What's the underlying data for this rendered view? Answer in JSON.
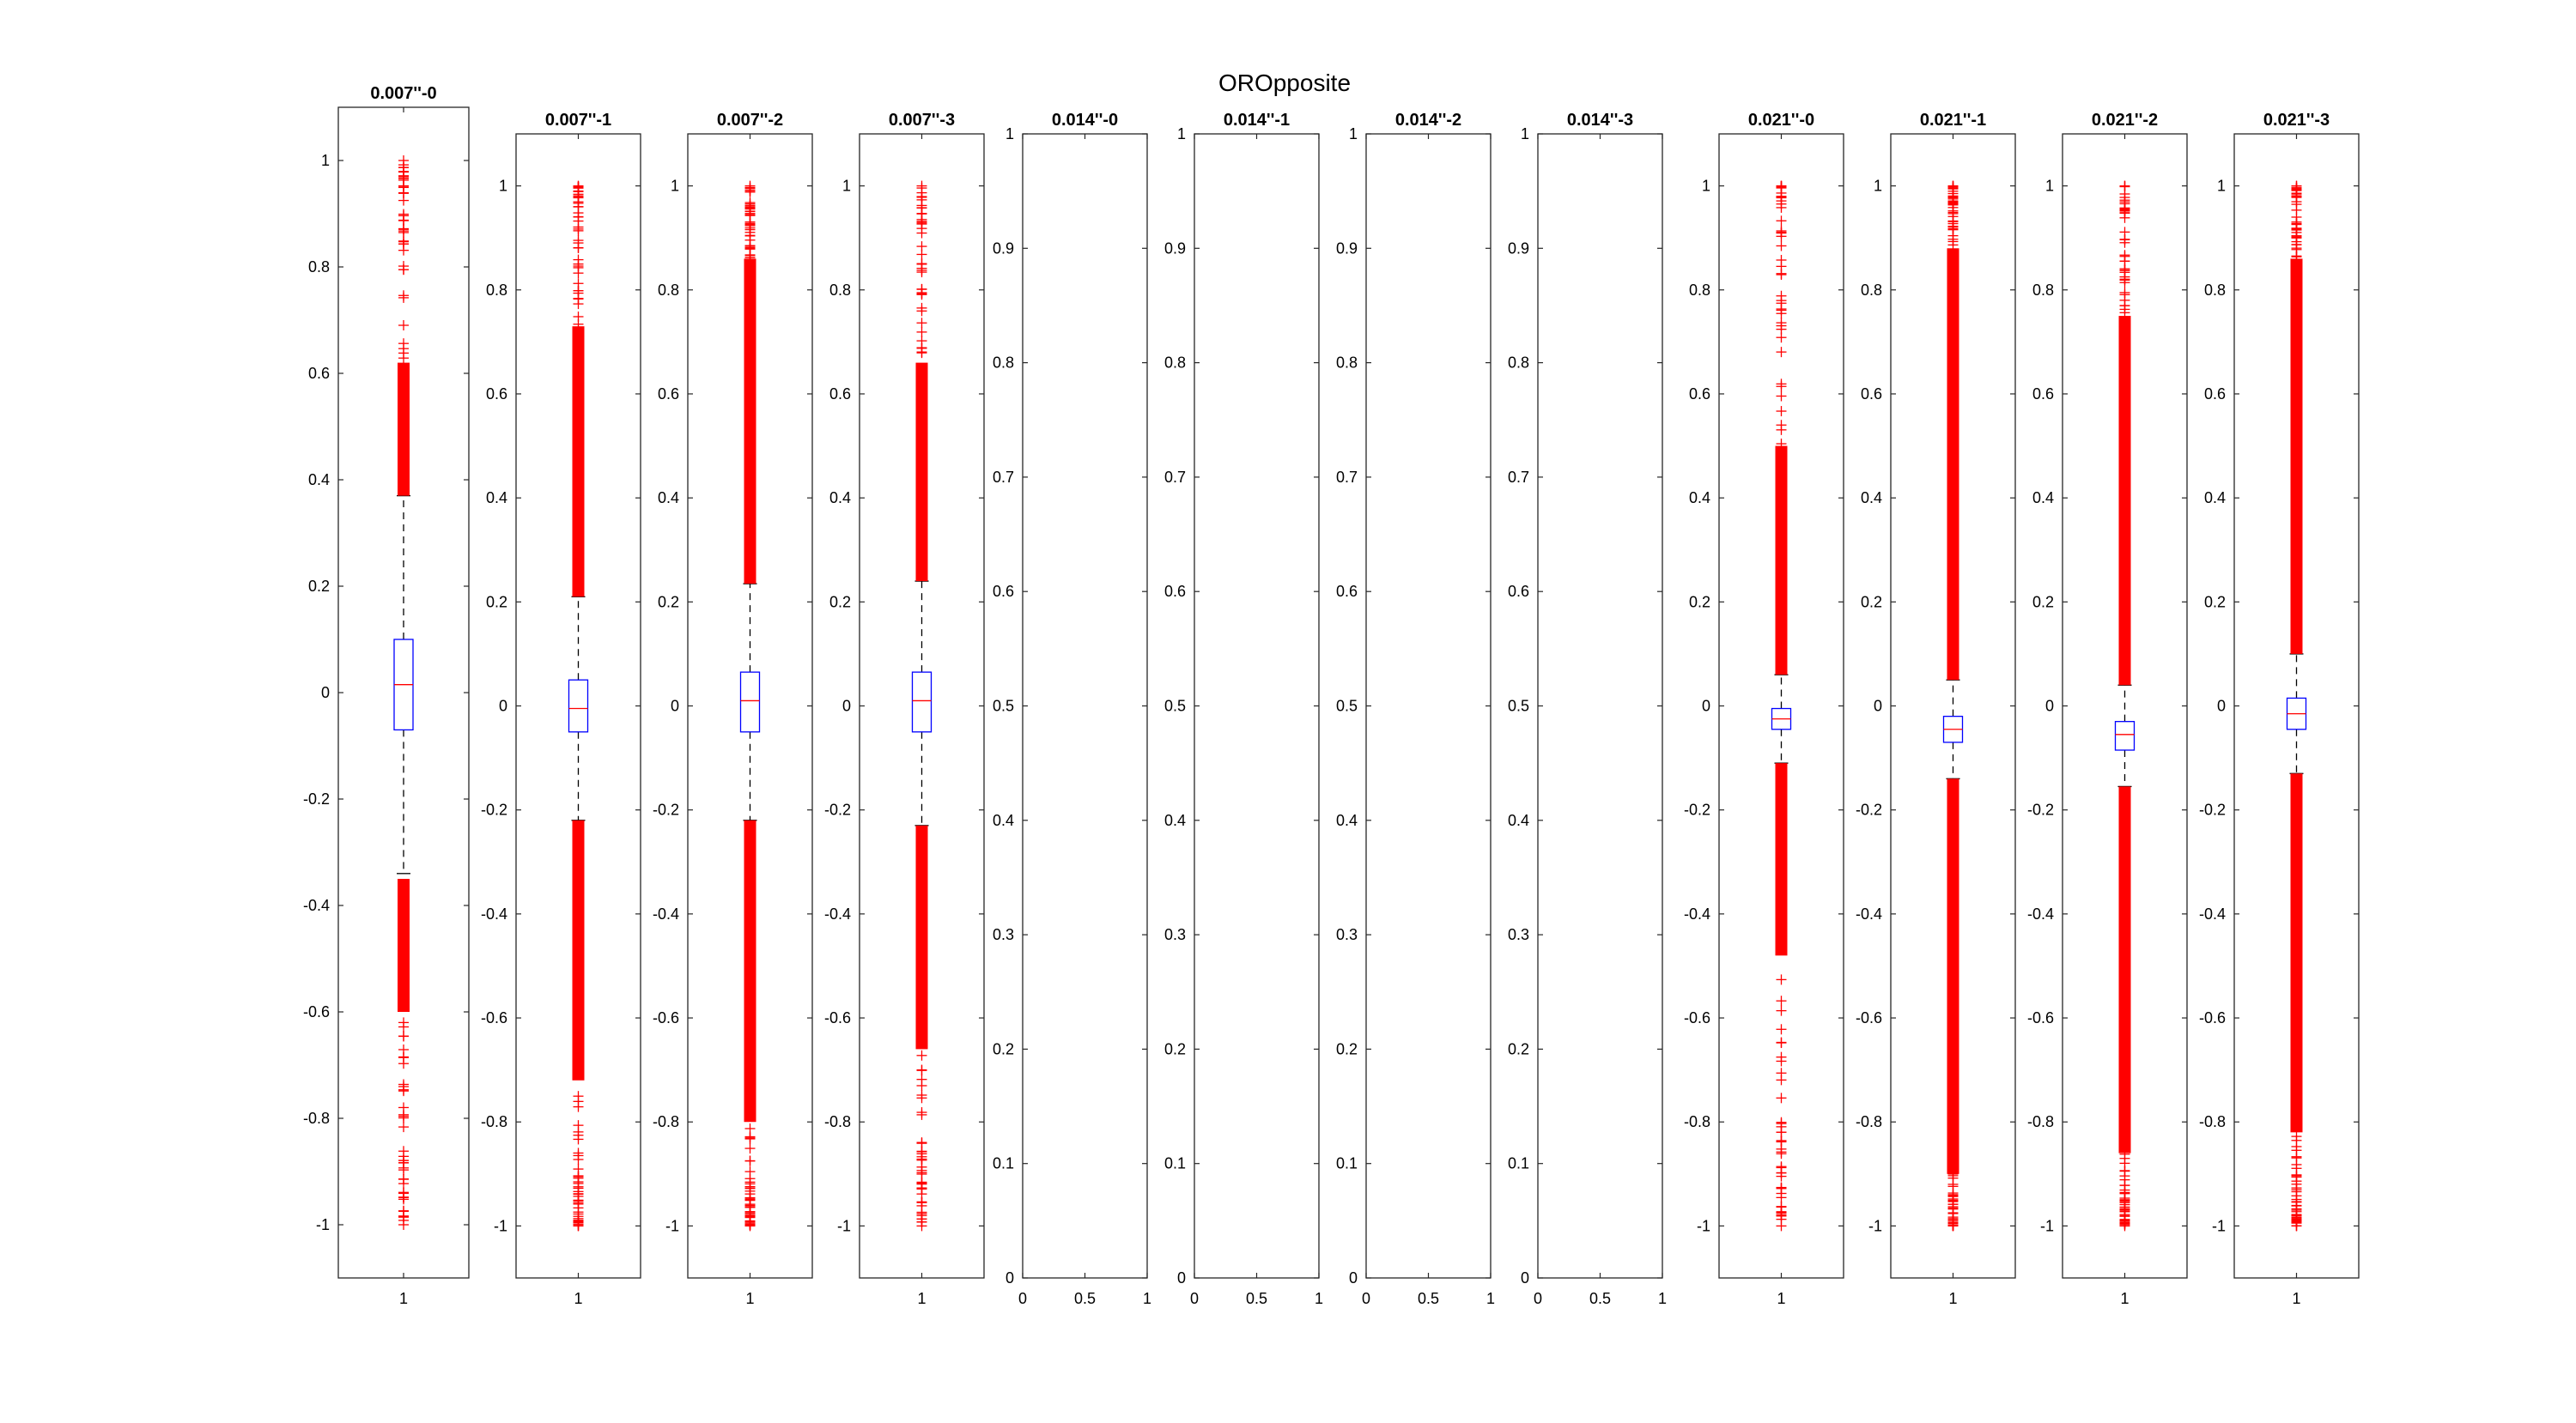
{
  "figure": {
    "title": "OROpposite"
  },
  "colors": {
    "axes": "#262626",
    "box": "#0000ff",
    "median": "#ff0000",
    "whisker": "#000000",
    "outlier": "#ff0000",
    "background": "#ffffff"
  },
  "chart_data": [
    {
      "type": "box",
      "title": "0.007''-0",
      "xticks": [
        "1"
      ],
      "ylim": [
        -1.1,
        1.1
      ],
      "yticks": [
        "-1",
        "-0.8",
        "-0.6",
        "-0.4",
        "-0.2",
        "0",
        "0.2",
        "0.4",
        "0.6",
        "0.8",
        "1"
      ],
      "box": {
        "q1": -0.07,
        "median": 0.015,
        "q3": 0.1,
        "whisker_low": -0.34,
        "whisker_high": 0.37
      },
      "outliers": {
        "dense_low": [
          -0.35,
          -0.6
        ],
        "sparse_low": [
          -0.6,
          -1.0
        ],
        "dense_high": [
          0.37,
          0.62
        ],
        "sparse_high": [
          0.62,
          1.0
        ]
      }
    },
    {
      "type": "box",
      "title": "0.007''-1",
      "xticks": [
        "1"
      ],
      "ylim": [
        -1.1,
        1.1
      ],
      "yticks": [
        "-1",
        "-0.8",
        "-0.6",
        "-0.4",
        "-0.2",
        "0",
        "0.2",
        "0.4",
        "0.6",
        "0.8",
        "1"
      ],
      "box": {
        "q1": -0.05,
        "median": -0.005,
        "q3": 0.05,
        "whisker_low": -0.22,
        "whisker_high": 0.21
      },
      "outliers": {
        "dense_low": [
          -0.22,
          -0.72
        ],
        "sparse_low": [
          -0.72,
          -1.0
        ],
        "dense_high": [
          0.21,
          0.73
        ],
        "sparse_high": [
          0.73,
          1.0
        ]
      }
    },
    {
      "type": "box",
      "title": "0.007''-2",
      "xticks": [
        "1"
      ],
      "ylim": [
        -1.1,
        1.1
      ],
      "yticks": [
        "-1",
        "-0.8",
        "-0.6",
        "-0.4",
        "-0.2",
        "0",
        "0.2",
        "0.4",
        "0.6",
        "0.8",
        "1"
      ],
      "box": {
        "q1": -0.05,
        "median": 0.01,
        "q3": 0.065,
        "whisker_low": -0.22,
        "whisker_high": 0.235
      },
      "outliers": {
        "dense_low": [
          -0.22,
          -0.8
        ],
        "sparse_low": [
          -0.8,
          -1.0
        ],
        "dense_high": [
          0.235,
          0.86
        ],
        "sparse_high": [
          0.86,
          1.0
        ]
      }
    },
    {
      "type": "box",
      "title": "0.007''-3",
      "xticks": [
        "1"
      ],
      "ylim": [
        -1.1,
        1.1
      ],
      "yticks": [
        "-1",
        "-0.8",
        "-0.6",
        "-0.4",
        "-0.2",
        "0",
        "0.2",
        "0.4",
        "0.6",
        "0.8",
        "1"
      ],
      "box": {
        "q1": -0.05,
        "median": 0.01,
        "q3": 0.065,
        "whisker_low": -0.23,
        "whisker_high": 0.24
      },
      "outliers": {
        "dense_low": [
          -0.23,
          -0.66
        ],
        "sparse_low": [
          -0.66,
          -1.0
        ],
        "dense_high": [
          0.24,
          0.66
        ],
        "sparse_high": [
          0.66,
          1.0
        ]
      }
    },
    {
      "type": "empty",
      "title": "0.014''-0",
      "xlim": [
        0,
        1
      ],
      "ylim": [
        0,
        1
      ],
      "xticks": [
        "0",
        "0.5",
        "1"
      ],
      "yticks": [
        "0",
        "0.1",
        "0.2",
        "0.3",
        "0.4",
        "0.5",
        "0.6",
        "0.7",
        "0.8",
        "0.9",
        "1"
      ]
    },
    {
      "type": "empty",
      "title": "0.014''-1",
      "xlim": [
        0,
        1
      ],
      "ylim": [
        0,
        1
      ],
      "xticks": [
        "0",
        "0.5",
        "1"
      ],
      "yticks": [
        "0",
        "0.1",
        "0.2",
        "0.3",
        "0.4",
        "0.5",
        "0.6",
        "0.7",
        "0.8",
        "0.9",
        "1"
      ]
    },
    {
      "type": "empty",
      "title": "0.014''-2",
      "xlim": [
        0,
        1
      ],
      "ylim": [
        0,
        1
      ],
      "xticks": [
        "0",
        "0.5",
        "1"
      ],
      "yticks": [
        "0",
        "0.1",
        "0.2",
        "0.3",
        "0.4",
        "0.5",
        "0.6",
        "0.7",
        "0.8",
        "0.9",
        "1"
      ]
    },
    {
      "type": "empty",
      "title": "0.014''-3",
      "xlim": [
        0,
        1
      ],
      "ylim": [
        0,
        1
      ],
      "xticks": [
        "0",
        "0.5",
        "1"
      ],
      "yticks": [
        "0",
        "0.1",
        "0.2",
        "0.3",
        "0.4",
        "0.5",
        "0.6",
        "0.7",
        "0.8",
        "0.9",
        "1"
      ]
    },
    {
      "type": "box",
      "title": "0.021''-0",
      "xticks": [
        "1"
      ],
      "ylim": [
        -1.1,
        1.1
      ],
      "yticks": [
        "-1",
        "-0.8",
        "-0.6",
        "-0.4",
        "-0.2",
        "0",
        "0.2",
        "0.4",
        "0.6",
        "0.8",
        "1"
      ],
      "box": {
        "q1": -0.045,
        "median": -0.025,
        "q3": -0.005,
        "whisker_low": -0.11,
        "whisker_high": 0.06
      },
      "outliers": {
        "dense_low": [
          -0.11,
          -0.48
        ],
        "sparse_low": [
          -0.48,
          -1.0
        ],
        "dense_high": [
          0.06,
          0.5
        ],
        "sparse_high": [
          0.5,
          1.0
        ]
      }
    },
    {
      "type": "box",
      "title": "0.021''-1",
      "xticks": [
        "1"
      ],
      "ylim": [
        -1.1,
        1.1
      ],
      "yticks": [
        "-1",
        "-0.8",
        "-0.6",
        "-0.4",
        "-0.2",
        "0",
        "0.2",
        "0.4",
        "0.6",
        "0.8",
        "1"
      ],
      "box": {
        "q1": -0.07,
        "median": -0.045,
        "q3": -0.02,
        "whisker_low": -0.14,
        "whisker_high": 0.05
      },
      "outliers": {
        "dense_low": [
          -0.14,
          -0.9
        ],
        "sparse_low": [
          -0.9,
          -1.0
        ],
        "dense_high": [
          0.05,
          0.88
        ],
        "sparse_high": [
          0.88,
          1.0
        ]
      }
    },
    {
      "type": "box",
      "title": "0.021''-2",
      "xticks": [
        "1"
      ],
      "ylim": [
        -1.1,
        1.1
      ],
      "yticks": [
        "-1",
        "-0.8",
        "-0.6",
        "-0.4",
        "-0.2",
        "0",
        "0.2",
        "0.4",
        "0.6",
        "0.8",
        "1"
      ],
      "box": {
        "q1": -0.085,
        "median": -0.055,
        "q3": -0.03,
        "whisker_low": -0.155,
        "whisker_high": 0.04
      },
      "outliers": {
        "dense_low": [
          -0.155,
          -0.86
        ],
        "sparse_low": [
          -0.86,
          -1.0
        ],
        "dense_high": [
          0.04,
          0.75
        ],
        "sparse_high": [
          0.75,
          1.0
        ]
      }
    },
    {
      "type": "box",
      "title": "0.021''-3",
      "xticks": [
        "1"
      ],
      "ylim": [
        -1.1,
        1.1
      ],
      "yticks": [
        "-1",
        "-0.8",
        "-0.6",
        "-0.4",
        "-0.2",
        "0",
        "0.2",
        "0.4",
        "0.6",
        "0.8",
        "1"
      ],
      "box": {
        "q1": -0.045,
        "median": -0.015,
        "q3": 0.015,
        "whisker_low": -0.13,
        "whisker_high": 0.1
      },
      "outliers": {
        "dense_low": [
          -0.13,
          -0.82
        ],
        "sparse_low": [
          -0.82,
          -1.0
        ],
        "dense_high": [
          0.1,
          0.86
        ],
        "sparse_high": [
          0.86,
          1.0
        ]
      }
    }
  ]
}
